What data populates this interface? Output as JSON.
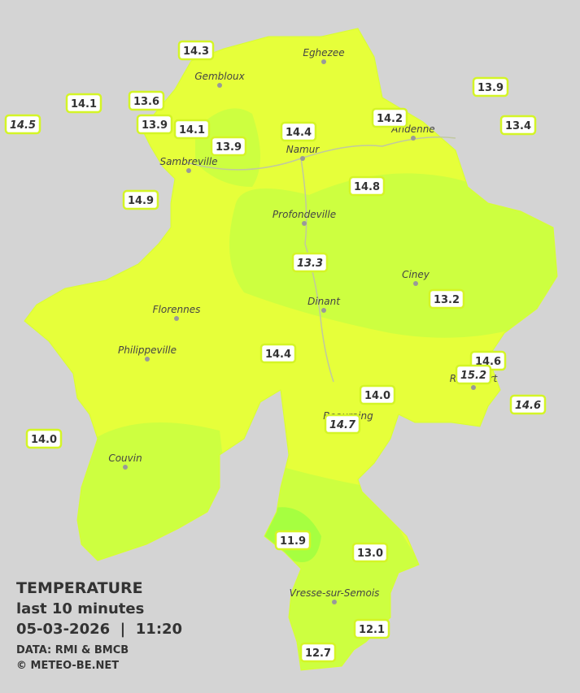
{
  "legend": {
    "title": "TEMPERATURE",
    "period": "last 10 minutes",
    "datetime": "05-03-2026  |  11:20",
    "source": "DATA: RMI & BMCB",
    "copyright": "© METEO-BE.NET"
  },
  "towns": [
    "Eghezee",
    "Gembloux",
    "Andenne",
    "Namur",
    "Sambreville",
    "Profondeville",
    "Ciney",
    "Dinant",
    "Florennes",
    "Philippeville",
    "Rochefort",
    "Beauraing",
    "Couvin",
    "Vresse-sur-Semois"
  ],
  "stations": [
    {
      "value": "14.3",
      "italic": false
    },
    {
      "value": "14.1",
      "italic": false
    },
    {
      "value": "13.6",
      "italic": false
    },
    {
      "value": "14.5",
      "italic": true
    },
    {
      "value": "13.9",
      "italic": false
    },
    {
      "value": "14.1",
      "italic": false
    },
    {
      "value": "13.9",
      "italic": false
    },
    {
      "value": "14.4",
      "italic": false
    },
    {
      "value": "14.2",
      "italic": false
    },
    {
      "value": "13.9",
      "italic": false
    },
    {
      "value": "13.4",
      "italic": false
    },
    {
      "value": "14.9",
      "italic": false
    },
    {
      "value": "14.8",
      "italic": false
    },
    {
      "value": "13.3",
      "italic": true
    },
    {
      "value": "13.2",
      "italic": false
    },
    {
      "value": "14.4",
      "italic": false
    },
    {
      "value": "14.6",
      "italic": false
    },
    {
      "value": "15.2",
      "italic": true
    },
    {
      "value": "14.6",
      "italic": true
    },
    {
      "value": "14.0",
      "italic": false
    },
    {
      "value": "14.7",
      "italic": true
    },
    {
      "value": "14.0",
      "italic": false
    },
    {
      "value": "11.9",
      "italic": false
    },
    {
      "value": "13.0",
      "italic": false
    },
    {
      "value": "12.1",
      "italic": false
    },
    {
      "value": "12.7",
      "italic": false
    }
  ]
}
